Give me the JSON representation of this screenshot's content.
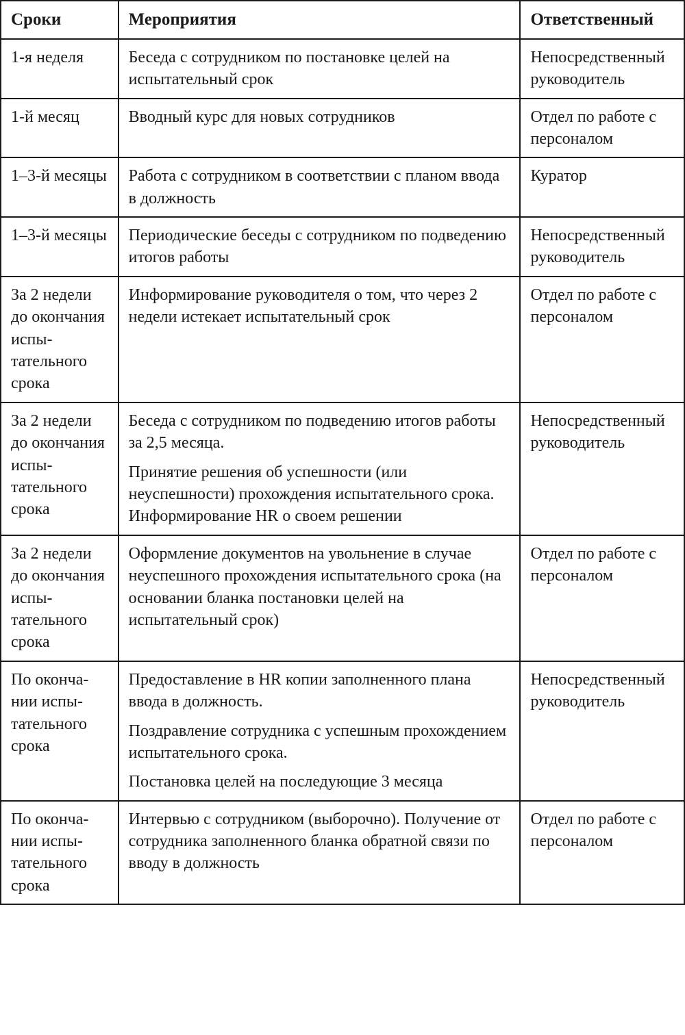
{
  "table": {
    "border_color": "#1a1a1a",
    "background_color": "#ffffff",
    "text_color": "#1a1a1a",
    "header_fontsize": 25,
    "cell_fontsize": 24,
    "font_family": "Georgia, 'Times New Roman', serif",
    "column_widths_pct": [
      17.2,
      58.8,
      24
    ],
    "columns": [
      "Сроки",
      "Мероприятия",
      "Ответственный"
    ],
    "rows": [
      {
        "c0": "1-я неделя",
        "c1": [
          "Беседа с сотрудником по постановке целей на испытательный срок"
        ],
        "c2": "Непосредствен­ный руководи­тель"
      },
      {
        "c0": "1-й месяц",
        "c1": [
          "Вводный курс для новых сотрудни­ков"
        ],
        "c2": "Отдел по работе с персоналом"
      },
      {
        "c0": "1–3-й ме­сяцы",
        "c1": [
          "Работа с сотрудником в соответ­ствии с планом ввода в должность"
        ],
        "c2": "Куратор"
      },
      {
        "c0": "1–3-й ме­сяцы",
        "c1": [
          "Периодические беседы с сотрудни­ком по подведению итогов работы"
        ],
        "c2": "Непосредствен­ный руководи­тель"
      },
      {
        "c0": "За 2 недели до оконча­ния испы­тательного срока",
        "c1": [
          "Информирование руководителя о том, что через 2 недели истекает испытательный срок"
        ],
        "c2": "Отдел по работе с персоналом"
      },
      {
        "c0": "За 2 недели до оконча­ния испы­тательного срока",
        "c1": [
          "Беседа с сотрудником по подведе­нию итогов работы за 2,5 месяца.",
          "Принятие решения об успешности (или неуспешности) прохождения испытательного срока. Информиро­вание HR о своем решении"
        ],
        "c2": "Непосредствен­ный руководи­тель"
      },
      {
        "c0": "За 2 недели до оконча­ния испы­тательного срока",
        "c1": [
          "Оформление документов на уволь­нение в случае неуспешного про­хождения испытательного срока (на основании бланка постановки целей на испытательный срок)"
        ],
        "c2": "Отдел по работе с персоналом"
      },
      {
        "c0": "По оконча­нии испы­тательного срока",
        "c1": [
          "Предоставление в HR копии заполненного плана ввода в должность.",
          "Поздравление сотрудника с успеш­ным прохождением испытательного срока.",
          "Постановка целей на последующие 3 месяца"
        ],
        "c2": "Непосредствен­ный руководи­тель"
      },
      {
        "c0": "По оконча­нии испы­тательного срока",
        "c1": [
          "Интервью с сотрудником (выбороч­но). Получение от сотрудника за­полненного бланка обратной связи по вводу в должность"
        ],
        "c2": "Отдел по работе с персоналом"
      }
    ]
  }
}
